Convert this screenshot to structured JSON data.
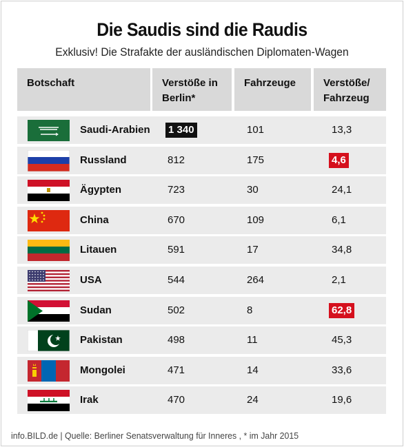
{
  "title": "Die Saudis sind die Raudis",
  "subtitle": "Exklusiv! Die Strafakte der ausländischen Diplomaten-Wagen",
  "headers": {
    "botschaft": "Botschaft",
    "verstoesse": [
      "Verstöße in",
      "Berlin*"
    ],
    "fahrzeuge": "Fahrzeuge",
    "ratio": [
      "Verstöße/",
      "Fahrzeug"
    ]
  },
  "footer": "info.BILD.de | Quelle: Berliner Senatsverwaltung für Inneres , * im Jahr 2015",
  "colors": {
    "header_bg": "#d9d9d9",
    "row_bg": "#ebebeb",
    "highlight_black": "#111111",
    "highlight_red": "#d5101d"
  },
  "chart_data": {
    "type": "table",
    "title": "Die Saudis sind die Raudis",
    "subtitle": "Exklusiv! Die Strafakte der ausländischen Diplomaten-Wagen",
    "columns": [
      "Botschaft",
      "Verstöße in Berlin*",
      "Fahrzeuge",
      "Verstöße/ Fahrzeug"
    ],
    "rows": [
      {
        "country": "Saudi-Arabien",
        "flag": "saudi-arabia-flag",
        "violations": "1 340",
        "vehicles": "101",
        "ratio": "13,3",
        "highlight": "violations"
      },
      {
        "country": "Russland",
        "flag": "russia-flag",
        "violations": "812",
        "vehicles": "175",
        "ratio": "4,6",
        "highlight": "ratio"
      },
      {
        "country": "Ägypten",
        "flag": "egypt-flag",
        "violations": "723",
        "vehicles": "30",
        "ratio": "24,1",
        "highlight": ""
      },
      {
        "country": "China",
        "flag": "china-flag",
        "violations": "670",
        "vehicles": "109",
        "ratio": "6,1",
        "highlight": ""
      },
      {
        "country": "Litauen",
        "flag": "lithuania-flag",
        "violations": "591",
        "vehicles": "17",
        "ratio": "34,8",
        "highlight": ""
      },
      {
        "country": "USA",
        "flag": "usa-flag",
        "violations": "544",
        "vehicles": "264",
        "ratio": "2,1",
        "highlight": ""
      },
      {
        "country": "Sudan",
        "flag": "sudan-flag",
        "violations": "502",
        "vehicles": "8",
        "ratio": "62,8",
        "highlight": "ratio"
      },
      {
        "country": "Pakistan",
        "flag": "pakistan-flag",
        "violations": "498",
        "vehicles": "11",
        "ratio": "45,3",
        "highlight": ""
      },
      {
        "country": "Mongolei",
        "flag": "mongolia-flag",
        "violations": "471",
        "vehicles": "14",
        "ratio": "33,6",
        "highlight": ""
      },
      {
        "country": "Irak",
        "flag": "iraq-flag",
        "violations": "470",
        "vehicles": "24",
        "ratio": "19,6",
        "highlight": ""
      }
    ]
  }
}
